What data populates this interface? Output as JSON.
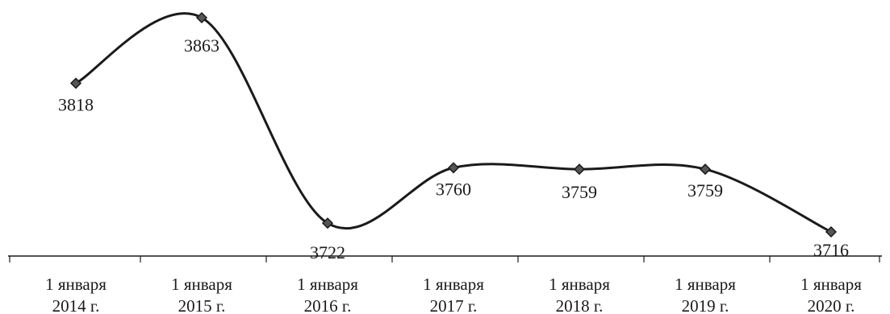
{
  "chart_data": {
    "type": "line",
    "categories": [
      [
        "1 января",
        "2014 г."
      ],
      [
        "1 января",
        "2015 г."
      ],
      [
        "1 января",
        "2016 г."
      ],
      [
        "1 января",
        "2017 г."
      ],
      [
        "1 января",
        "2018 г."
      ],
      [
        "1 января",
        "2019 г."
      ],
      [
        "1 января",
        "2020 г."
      ]
    ],
    "values": [
      3818,
      3863,
      3722,
      3760,
      3759,
      3759,
      3716
    ],
    "data_labels": [
      "3818",
      "3863",
      "3722",
      "3760",
      "3759",
      "3759",
      "3716"
    ],
    "title": "",
    "xlabel": "",
    "ylabel": "",
    "ylim": [
      3716,
      3863
    ],
    "grid": false,
    "smooth": true,
    "marker": "diamond",
    "line_color": "#1a1a1a"
  }
}
